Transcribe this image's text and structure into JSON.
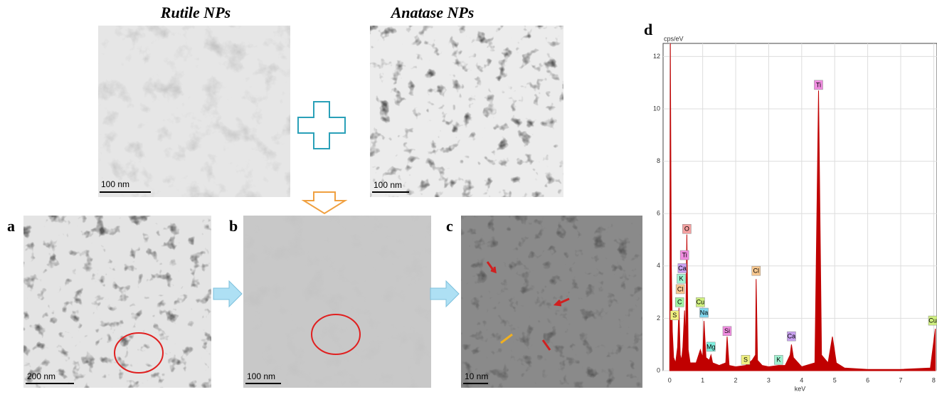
{
  "figure": {
    "top_left_title": "Rutile NPs",
    "top_right_title": "Anatase NPs",
    "top_left_scale": "100 nm",
    "top_right_scale": "100 nm",
    "panels": [
      {
        "label": "a",
        "scale": "200 nm"
      },
      {
        "label": "b",
        "scale": "100 nm"
      },
      {
        "label": "c",
        "scale": "10 nm"
      }
    ]
  },
  "chart_data": {
    "type": "area",
    "panel_label": "d",
    "ylabel": "cps/eV",
    "xlabel": "keV",
    "color": "#c00000",
    "grid": true,
    "xlim": [
      -0.2,
      8.1
    ],
    "ylim": [
      0,
      12.5
    ],
    "xticks": [
      0,
      1,
      2,
      3,
      4,
      5,
      6,
      7,
      8
    ],
    "yticks": [
      0,
      2,
      4,
      6,
      8,
      10,
      12
    ],
    "x": [
      0,
      0.02,
      0.05,
      0.08,
      0.12,
      0.18,
      0.24,
      0.28,
      0.32,
      0.36,
      0.4,
      0.45,
      0.48,
      0.52,
      0.56,
      0.62,
      0.8,
      0.93,
      1.0,
      1.04,
      1.1,
      1.2,
      1.25,
      1.3,
      1.5,
      1.7,
      1.74,
      1.8,
      2.0,
      2.3,
      2.5,
      2.6,
      2.62,
      2.66,
      2.8,
      3.0,
      3.3,
      3.5,
      3.65,
      3.69,
      3.75,
      4.0,
      4.4,
      4.51,
      4.6,
      4.8,
      4.93,
      5.05,
      5.3,
      6,
      7,
      7.9,
      8.05
    ],
    "values": [
      0,
      12.5,
      4,
      1.5,
      0.5,
      0.3,
      0.9,
      2.4,
      0.6,
      0.4,
      0.9,
      2.3,
      1.0,
      5.2,
      0.8,
      0.3,
      0.3,
      0.8,
      0.5,
      1.9,
      0.5,
      0.4,
      0.6,
      0.3,
      0.2,
      0.3,
      1.3,
      0.2,
      0.15,
      0.2,
      0.4,
      0.6,
      3.5,
      0.4,
      0.2,
      0.15,
      0.2,
      0.2,
      0.6,
      1.0,
      0.5,
      0.15,
      0.3,
      10.7,
      0.6,
      0.3,
      1.3,
      0.3,
      0.1,
      0.05,
      0.05,
      0.1,
      1.6
    ],
    "annotations": [
      {
        "text": "O",
        "x": 0.52,
        "y": 5.4,
        "color": "#f4a0a0"
      },
      {
        "text": "Ti",
        "x": 0.45,
        "y": 4.4,
        "color": "#f08ce0"
      },
      {
        "text": "Ca",
        "x": 0.38,
        "y": 3.9,
        "color": "#c8a0f0"
      },
      {
        "text": "K",
        "x": 0.35,
        "y": 3.5,
        "color": "#a0f0d0"
      },
      {
        "text": "Cl",
        "x": 0.32,
        "y": 3.1,
        "color": "#f8c890"
      },
      {
        "text": "C",
        "x": 0.3,
        "y": 2.6,
        "color": "#a0f0a0"
      },
      {
        "text": "S",
        "x": 0.15,
        "y": 2.1,
        "color": "#f0f080"
      },
      {
        "text": "Cu",
        "x": 0.93,
        "y": 2.6,
        "color": "#d0f080"
      },
      {
        "text": "Na",
        "x": 1.04,
        "y": 2.2,
        "color": "#80d8f0"
      },
      {
        "text": "Mg",
        "x": 1.25,
        "y": 0.9,
        "color": "#80f0e0"
      },
      {
        "text": "Si",
        "x": 1.74,
        "y": 1.5,
        "color": "#f08ce0"
      },
      {
        "text": "S",
        "x": 2.3,
        "y": 0.4,
        "color": "#f0f080"
      },
      {
        "text": "Cl",
        "x": 2.62,
        "y": 3.8,
        "color": "#f8c890"
      },
      {
        "text": "K",
        "x": 3.3,
        "y": 0.4,
        "color": "#a0f0d0"
      },
      {
        "text": "Ca",
        "x": 3.69,
        "y": 1.3,
        "color": "#c8a0f0"
      },
      {
        "text": "Ti",
        "x": 4.51,
        "y": 10.9,
        "color": "#f08ce0"
      },
      {
        "text": "Cu",
        "x": 8.05,
        "y": 1.9,
        "color": "#d0f080"
      }
    ]
  }
}
